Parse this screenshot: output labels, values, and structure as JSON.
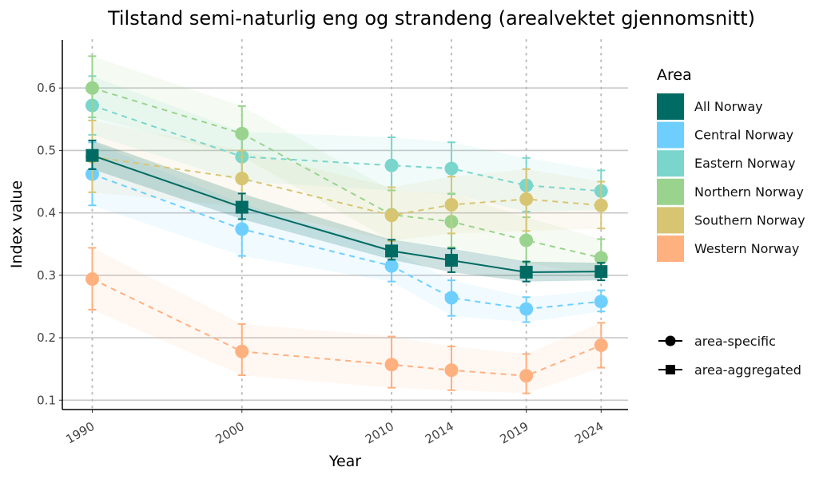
{
  "chart_data": {
    "type": "line",
    "title": "Tilstand semi-naturlig eng og strandeng (arealvektet gjennomsnitt)",
    "xlabel": "Year",
    "ylabel": "Index value",
    "x": [
      1990,
      2000,
      2010,
      2014,
      2019,
      2024
    ],
    "xticks": [
      "1990",
      "2000",
      "2010",
      "2014",
      "2019",
      "2024"
    ],
    "yticks": [
      "0.1",
      "0.2",
      "0.3",
      "0.4",
      "0.5",
      "0.6"
    ],
    "xlim": [
      1988,
      2025.8
    ],
    "ylim": [
      0.085,
      0.677
    ],
    "grid": "horizontal major lines; dotted vertical lines at data years",
    "legend_position": "right",
    "legend_title": "Area",
    "shape_legend": [
      "area-specific",
      "area-aggregated"
    ],
    "series": [
      {
        "name": "All Norway",
        "color": "#006b63",
        "shape": "square",
        "dash": false,
        "values": [
          0.492,
          0.409,
          0.339,
          0.324,
          0.305,
          0.306
        ],
        "lower": [
          0.47,
          0.39,
          0.325,
          0.305,
          0.29,
          0.292
        ],
        "upper": [
          0.516,
          0.431,
          0.357,
          0.343,
          0.322,
          0.32
        ]
      },
      {
        "name": "Central Norway",
        "color": "#6ecfff",
        "shape": "circle",
        "dash": true,
        "values": [
          0.462,
          0.374,
          0.315,
          0.264,
          0.246,
          0.258
        ],
        "lower": [
          0.412,
          0.331,
          0.29,
          0.235,
          0.225,
          0.242
        ],
        "upper": [
          0.513,
          0.415,
          0.34,
          0.292,
          0.265,
          0.276
        ]
      },
      {
        "name": "Eastern Norway",
        "color": "#7ad6cc",
        "shape": "circle",
        "dash": true,
        "values": [
          0.572,
          0.49,
          0.476,
          0.471,
          0.444,
          0.435
        ],
        "lower": [
          0.525,
          0.45,
          0.436,
          0.43,
          0.402,
          0.405
        ],
        "upper": [
          0.619,
          0.53,
          0.521,
          0.513,
          0.488,
          0.468
        ]
      },
      {
        "name": "Northern Norway",
        "color": "#9ad38e",
        "shape": "circle",
        "dash": true,
        "values": [
          0.6,
          0.527,
          0.397,
          0.386,
          0.356,
          0.328
        ],
        "lower": [
          0.553,
          0.49,
          0.355,
          0.345,
          0.32,
          0.3
        ],
        "upper": [
          0.651,
          0.571,
          0.436,
          0.431,
          0.393,
          0.358
        ]
      },
      {
        "name": "Southern Norway",
        "color": "#d8c572",
        "shape": "circle",
        "dash": true,
        "values": [
          0.49,
          0.455,
          0.396,
          0.413,
          0.422,
          0.412
        ],
        "lower": [
          0.433,
          0.41,
          0.355,
          0.367,
          0.371,
          0.375
        ],
        "upper": [
          0.548,
          0.5,
          0.441,
          0.458,
          0.47,
          0.45
        ]
      },
      {
        "name": "Western Norway",
        "color": "#ffb07f",
        "shape": "circle",
        "dash": true,
        "values": [
          0.294,
          0.178,
          0.157,
          0.148,
          0.139,
          0.188
        ],
        "lower": [
          0.245,
          0.14,
          0.12,
          0.116,
          0.111,
          0.152
        ],
        "upper": [
          0.344,
          0.222,
          0.202,
          0.186,
          0.174,
          0.224
        ]
      }
    ]
  }
}
